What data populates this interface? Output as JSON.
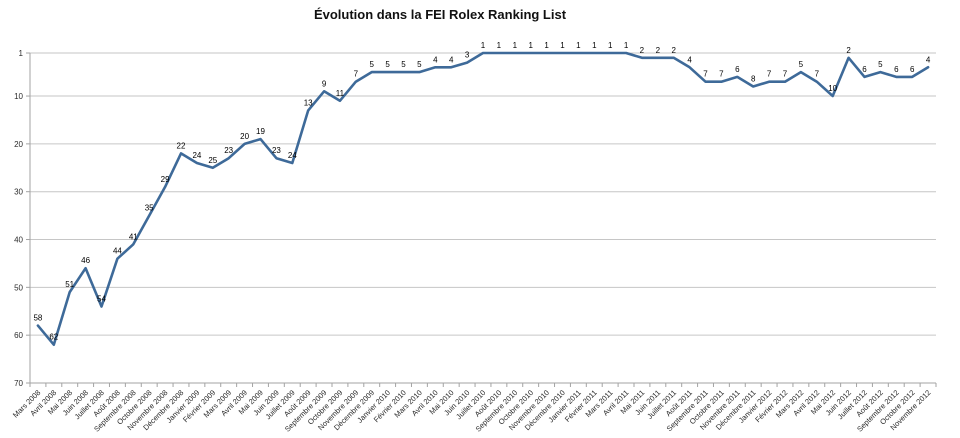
{
  "chart_data": {
    "type": "line",
    "title": "Évolution dans la FEI Rolex Ranking List",
    "categories": [
      "Mars 2008",
      "Avril 2008",
      "Mai 2008",
      "Juin 2008",
      "Juillet 2008",
      "Août 2008",
      "Septembre 2008",
      "Octobre 2008",
      "Novembre 2008",
      "Décembre 2008",
      "Janvier 2009",
      "Février 2009",
      "Mars 2009",
      "Avril 2009",
      "Mai 2009",
      "Juin 2009",
      "Juillet 2009",
      "Août 2009",
      "Septembre 2009",
      "Octobre 2009",
      "Novembre 2009",
      "Décembre 2009",
      "Janvier 2010",
      "Février 2010",
      "Mars 2010",
      "Avril 2010",
      "Mai 2010",
      "Juin 2010",
      "Juillet 2010",
      "Août 2010",
      "Septembre 2010",
      "Octobre 2010",
      "Novembre 2010",
      "Décembre 2010",
      "Janvier 2011",
      "Février 2011",
      "Mars 2011",
      "Avril 2011",
      "Mai 2011",
      "Juin 2011",
      "Juillet 2011",
      "Août 2011",
      "Septembre 2011",
      "Octobre 2011",
      "Novembre 2011",
      "Décembre 2011",
      "Janvier 2012",
      "Février 2012",
      "Mars 2012",
      "Avril 2012",
      "Mai 2012",
      "Juin 2012",
      "Juillet 2012",
      "Août 2012",
      "Septembre 2012",
      "Octobre 2012",
      "Novembre 2012"
    ],
    "values": [
      58,
      62,
      51,
      46,
      54,
      44,
      41,
      35,
      29,
      22,
      24,
      25,
      23,
      20,
      19,
      23,
      24,
      13,
      9,
      11,
      7,
      5,
      5,
      5,
      5,
      4,
      4,
      3,
      1,
      1,
      1,
      1,
      1,
      1,
      1,
      1,
      1,
      1,
      2,
      2,
      2,
      4,
      7,
      7,
      6,
      8,
      7,
      7,
      5,
      7,
      10,
      2,
      6,
      5,
      6,
      6,
      4
    ],
    "xlabel": "",
    "ylabel": "",
    "ylim": [
      1,
      70
    ],
    "y_ticks": [
      1,
      10,
      20,
      30,
      40,
      50,
      60,
      70
    ],
    "y_inverted": true,
    "grid": true,
    "legend": false,
    "data_labels": true,
    "colors": {
      "line": "#3E6A99",
      "gridline": "#C6C6C6",
      "axis": "#A3A3A3",
      "data_label": "#000000",
      "tick_label": "#2B2B2B"
    }
  }
}
